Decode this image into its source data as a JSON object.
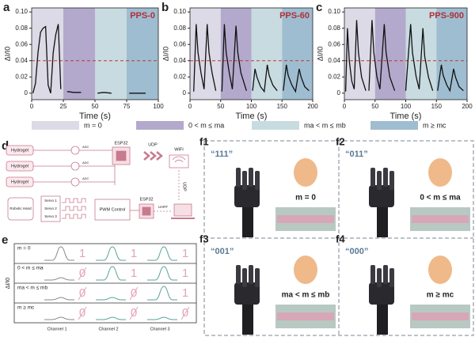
{
  "chart_data": [
    {
      "type": "line",
      "label": "a",
      "annotation": "PPS-0",
      "x_label": "Time (s)",
      "y_label": "ΔI/I0",
      "xlim": [
        0,
        100
      ],
      "xticks": [
        0,
        25,
        50,
        75,
        100
      ],
      "ylim": [
        -0.008,
        0.105
      ],
      "yticks": [
        0,
        0.02,
        0.04,
        0.06,
        0.08,
        {
          "value": 0.1,
          "label": "0.10"
        }
      ],
      "threshold": 0.04,
      "threshold_color": "#c0392b",
      "regions": [
        {
          "from": 0,
          "to": 25,
          "color": "#dcdae6"
        },
        {
          "from": 25,
          "to": 50,
          "color": "#b3a9cc"
        },
        {
          "from": 50,
          "to": 75,
          "color": "#c8dbe0"
        },
        {
          "from": 75,
          "to": 100,
          "color": "#9fbdd0"
        }
      ],
      "x": [
        1,
        3,
        5,
        7,
        9,
        11,
        13,
        15,
        17,
        19,
        21,
        23,
        24,
        28,
        33,
        39,
        45,
        52,
        57,
        63,
        70,
        77,
        83,
        90
      ],
      "series": [
        {
          "color": "#111111",
          "values": [
            0,
            0.012,
            0.05,
            0.075,
            0.08,
            0.082,
            0.01,
            0,
            0.05,
            0.072,
            0.085,
            0.005,
            null,
            0.002,
            0.001,
            0.001,
            null,
            0,
            0.001,
            0,
            null,
            0,
            0,
            0
          ]
        }
      ]
    },
    {
      "type": "line",
      "label": "b",
      "annotation": "PPS-60",
      "x_label": "Time (s)",
      "y_label": "ΔI/I0",
      "xlim": [
        0,
        200
      ],
      "xticks": [
        0,
        50,
        100,
        150,
        200
      ],
      "ylim": [
        -0.008,
        0.105
      ],
      "yticks": [
        0,
        0.02,
        0.04,
        0.06,
        0.08,
        {
          "value": 0.1,
          "label": "0.10"
        }
      ],
      "threshold": 0.04,
      "threshold_color": "#c0392b",
      "regions": [
        {
          "from": 0,
          "to": 50,
          "color": "#dcdae6"
        },
        {
          "from": 50,
          "to": 100,
          "color": "#b3a9cc"
        },
        {
          "from": 100,
          "to": 150,
          "color": "#c8dbe0"
        },
        {
          "from": 150,
          "to": 200,
          "color": "#9fbdd0"
        }
      ],
      "x": [
        6,
        10,
        13,
        18,
        23,
        28,
        31,
        36,
        42,
        46,
        52,
        56,
        59,
        64,
        69,
        75,
        78,
        83,
        92,
        96,
        102,
        106,
        109,
        115,
        121,
        126,
        129,
        135,
        142,
        146,
        152,
        157,
        160,
        166,
        172,
        178,
        181,
        187,
        194
      ],
      "series": [
        {
          "color": "#111111",
          "values": [
            0.002,
            0.085,
            0.05,
            0.025,
            0.005,
            0.085,
            0.05,
            0.025,
            0.003,
            null,
            0.002,
            0.085,
            0.05,
            0.025,
            0.005,
            0.083,
            0.05,
            0.025,
            0.003,
            null,
            0.003,
            0.03,
            0.02,
            0.008,
            0.002,
            0.035,
            0.022,
            0.01,
            0.003,
            null,
            0.003,
            0.035,
            0.022,
            0.01,
            0.002,
            0.03,
            0.02,
            0.008,
            0.003
          ]
        }
      ]
    },
    {
      "type": "line",
      "label": "c",
      "annotation": "PPS-900",
      "x_label": "Time (s)",
      "y_label": "ΔI/I0",
      "xlim": [
        0,
        200
      ],
      "xticks": [
        0,
        50,
        100,
        150,
        200
      ],
      "ylim": [
        -0.008,
        0.105
      ],
      "yticks": [
        0,
        0.02,
        0.04,
        0.06,
        0.08,
        {
          "value": 0.1,
          "label": "0.10"
        }
      ],
      "threshold": 0.04,
      "threshold_color": "#c0392b",
      "regions": [
        {
          "from": 0,
          "to": 50,
          "color": "#dcdae6"
        },
        {
          "from": 50,
          "to": 100,
          "color": "#b3a9cc"
        },
        {
          "from": 100,
          "to": 150,
          "color": "#c8dbe0"
        },
        {
          "from": 150,
          "to": 200,
          "color": "#9fbdd0"
        }
      ],
      "x": [
        2,
        5,
        8,
        12,
        16,
        20,
        23,
        28,
        35,
        38,
        40,
        45,
        48,
        53,
        58,
        65,
        68,
        74,
        82,
        90,
        100,
        108,
        111,
        117,
        122,
        128,
        131,
        137,
        144,
        148,
        152,
        158,
        161,
        167,
        172,
        178,
        181,
        187,
        194
      ],
      "series": [
        {
          "color": "#111111",
          "values": [
            0.002,
            0.08,
            0.04,
            0.015,
            0.005,
            0.09,
            0.05,
            0.02,
            0.003,
            null,
            0.003,
            0.09,
            0.05,
            0.02,
            0.005,
            0.085,
            0.05,
            0.02,
            0.003,
            null,
            0.003,
            0.085,
            0.05,
            0.02,
            0.005,
            0.08,
            0.045,
            0.02,
            0.003,
            null,
            0.003,
            0.035,
            0.022,
            0.01,
            0.003,
            0.03,
            0.02,
            0.008,
            0.003
          ]
        }
      ]
    }
  ],
  "legend": {
    "items": [
      {
        "label": "m = 0",
        "color": "#dcdae6"
      },
      {
        "label": "0 < m ≤ ma",
        "color": "#b3a9cc"
      },
      {
        "label": "ma < m ≤ mb",
        "color": "#c8dbe0"
      },
      {
        "label": "m ≥ mc",
        "color": "#9fbdd0"
      }
    ]
  },
  "panel_d": {
    "label": "d",
    "hydrogels": [
      "Hydrogel",
      "Hydrogel",
      "Hydrogel"
    ],
    "adc": [
      "ADC",
      "ADC",
      "ADC"
    ],
    "esp32_top": "ESP32",
    "udp_top": "UDP",
    "wifi": "WIFI",
    "udp_side": "UDP",
    "robotic_hand": "Robotic Hand",
    "servos": [
      "Servo 1",
      "Servo 2",
      "Servo 3"
    ],
    "pwm": "PWM Control",
    "esp32_bottom": "ESP32",
    "uart": "UART"
  },
  "panel_e": {
    "label": "e",
    "y_label": "ΔI/I0",
    "rows": [
      {
        "label": "m = 0",
        "digits": [
          "1",
          "1",
          "1"
        ]
      },
      {
        "label": "0 < m ≤ ma",
        "digits": [
          "0",
          "1",
          "1"
        ]
      },
      {
        "label": "ma < m ≤ mb",
        "digits": [
          "0",
          "0",
          "1"
        ]
      },
      {
        "label": "m ≥ mc",
        "digits": [
          "0",
          "0",
          "0"
        ]
      }
    ],
    "channels": [
      "Channel 1",
      "Channel 2",
      "Channel 3"
    ]
  },
  "panel_f": [
    {
      "label": "f1",
      "code": "“111”",
      "condition": "m = 0"
    },
    {
      "label": "f2",
      "code": "“011”",
      "condition": "0 < m ≤ ma"
    },
    {
      "label": "f3",
      "code": "“001”",
      "condition": "ma < m ≤ mb"
    },
    {
      "label": "f4",
      "code": "“000”",
      "condition": "m ≥ mc"
    }
  ]
}
